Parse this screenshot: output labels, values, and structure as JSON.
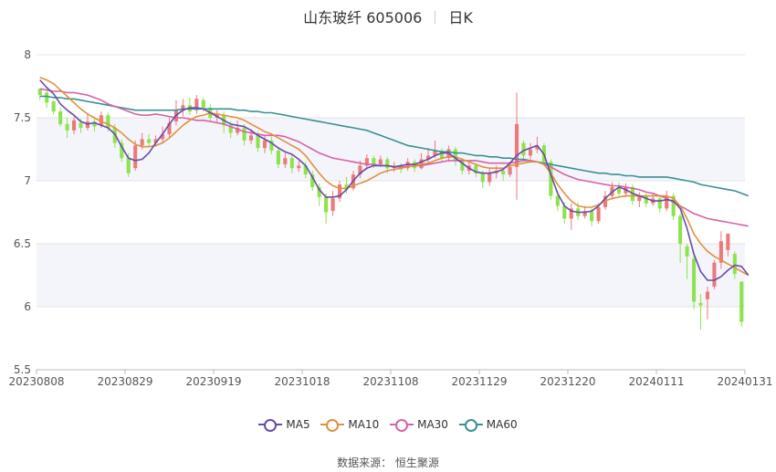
{
  "title": {
    "stock": "山东玻纤 605006",
    "period": "日K"
  },
  "source": "数据来源： 恒生聚源",
  "chart_data": {
    "type": "candlestick",
    "ylim": [
      5.5,
      8
    ],
    "yticks": [
      "8",
      "7.5",
      "7",
      "6.5",
      "6",
      "5.5"
    ],
    "xticks": [
      "20230808",
      "20230829",
      "20230919",
      "20231018",
      "20231108",
      "20231129",
      "20231220",
      "20240111",
      "20240131"
    ],
    "colors": {
      "up": "#ec7a7a",
      "down": "#8ce34d",
      "MA5": "#6a4aa8",
      "MA10": "#e0913f",
      "MA30": "#d464a8",
      "MA60": "#3a9091"
    },
    "legend": [
      "MA5",
      "MA10",
      "MA30",
      "MA60"
    ],
    "candles": [
      [
        7.73,
        7.68,
        7.71,
        7.64
      ],
      [
        7.7,
        7.62,
        7.72,
        7.58
      ],
      [
        7.63,
        7.55,
        7.64,
        7.53
      ],
      [
        7.55,
        7.45,
        7.58,
        7.43
      ],
      [
        7.45,
        7.4,
        7.5,
        7.34
      ],
      [
        7.4,
        7.48,
        7.51,
        7.37
      ],
      [
        7.46,
        7.42,
        7.49,
        7.38
      ],
      [
        7.42,
        7.47,
        7.53,
        7.4
      ],
      [
        7.47,
        7.43,
        7.5,
        7.39
      ],
      [
        7.44,
        7.52,
        7.55,
        7.42
      ],
      [
        7.52,
        7.42,
        7.54,
        7.39
      ],
      [
        7.42,
        7.3,
        7.45,
        7.26
      ],
      [
        7.3,
        7.18,
        7.33,
        7.15
      ],
      [
        7.18,
        7.06,
        7.22,
        7.03
      ],
      [
        7.1,
        7.28,
        7.32,
        7.08
      ],
      [
        7.28,
        7.33,
        7.38,
        7.25
      ],
      [
        7.33,
        7.3,
        7.37,
        7.27
      ],
      [
        7.3,
        7.33,
        7.36,
        7.27
      ],
      [
        7.33,
        7.37,
        7.43,
        7.3
      ],
      [
        7.37,
        7.46,
        7.5,
        7.34
      ],
      [
        7.47,
        7.56,
        7.64,
        7.44
      ],
      [
        7.56,
        7.6,
        7.65,
        7.51
      ],
      [
        7.6,
        7.55,
        7.66,
        7.52
      ],
      [
        7.56,
        7.65,
        7.68,
        7.53
      ],
      [
        7.64,
        7.58,
        7.66,
        7.55
      ],
      [
        7.58,
        7.5,
        7.61,
        7.47
      ],
      [
        7.5,
        7.53,
        7.56,
        7.46
      ],
      [
        7.52,
        7.44,
        7.55,
        7.38
      ],
      [
        7.44,
        7.38,
        7.47,
        7.34
      ],
      [
        7.38,
        7.42,
        7.48,
        7.36
      ],
      [
        7.42,
        7.32,
        7.45,
        7.28
      ],
      [
        7.32,
        7.36,
        7.41,
        7.29
      ],
      [
        7.36,
        7.26,
        7.39,
        7.23
      ],
      [
        7.26,
        7.32,
        7.36,
        7.22
      ],
      [
        7.32,
        7.24,
        7.35,
        7.21
      ],
      [
        7.24,
        7.13,
        7.26,
        7.1
      ],
      [
        7.13,
        7.18,
        7.22,
        7.1
      ],
      [
        7.18,
        7.1,
        7.21,
        7.06
      ],
      [
        7.1,
        7.12,
        7.16,
        7.07
      ],
      [
        7.12,
        7.05,
        7.15,
        7.02
      ],
      [
        7.05,
        6.95,
        7.08,
        6.92
      ],
      [
        6.95,
        6.87,
        6.98,
        6.8
      ],
      [
        6.87,
        6.75,
        6.9,
        6.66
      ],
      [
        6.76,
        6.86,
        6.92,
        6.72
      ],
      [
        6.86,
        6.97,
        7.0,
        6.83
      ],
      [
        6.97,
        6.93,
        7.03,
        6.9
      ],
      [
        6.94,
        7.05,
        7.08,
        6.92
      ],
      [
        7.05,
        7.12,
        7.16,
        7.02
      ],
      [
        7.12,
        7.18,
        7.21,
        7.09
      ],
      [
        7.18,
        7.13,
        7.2,
        7.1
      ],
      [
        7.13,
        7.17,
        7.2,
        7.11
      ],
      [
        7.17,
        7.1,
        7.19,
        7.06
      ],
      [
        7.1,
        7.12,
        7.15,
        7.07
      ],
      [
        7.12,
        7.09,
        7.14,
        7.06
      ],
      [
        7.1,
        7.15,
        7.18,
        7.08
      ],
      [
        7.15,
        7.1,
        7.17,
        7.07
      ],
      [
        7.1,
        7.17,
        7.22,
        7.09
      ],
      [
        7.17,
        7.2,
        7.26,
        7.14
      ],
      [
        7.2,
        7.24,
        7.32,
        7.18
      ],
      [
        7.24,
        7.18,
        7.26,
        7.15
      ],
      [
        7.18,
        7.25,
        7.28,
        7.15
      ],
      [
        7.25,
        7.16,
        7.27,
        7.12
      ],
      [
        7.16,
        7.08,
        7.18,
        7.05
      ],
      [
        7.08,
        7.12,
        7.16,
        7.05
      ],
      [
        7.12,
        7.06,
        7.14,
        7.03
      ],
      [
        7.06,
        6.99,
        7.08,
        6.94
      ],
      [
        6.99,
        7.06,
        7.1,
        6.96
      ],
      [
        7.06,
        7.08,
        7.12,
        7.02
      ],
      [
        7.08,
        7.05,
        7.1,
        7.0
      ],
      [
        7.05,
        7.11,
        7.15,
        7.03
      ],
      [
        7.11,
        7.45,
        7.7,
        6.85
      ],
      [
        7.3,
        7.2,
        7.32,
        7.15
      ],
      [
        7.2,
        7.25,
        7.3,
        7.17
      ],
      [
        7.25,
        7.28,
        7.35,
        7.22
      ],
      [
        7.28,
        7.15,
        7.3,
        7.12
      ],
      [
        7.15,
        6.88,
        7.17,
        6.85
      ],
      [
        6.88,
        6.8,
        6.92,
        6.76
      ],
      [
        6.8,
        6.7,
        6.83,
        6.66
      ],
      [
        6.7,
        6.78,
        6.82,
        6.61
      ],
      [
        6.78,
        6.72,
        6.83,
        6.69
      ],
      [
        6.72,
        6.76,
        6.8,
        6.7
      ],
      [
        6.76,
        6.68,
        6.78,
        6.64
      ],
      [
        6.68,
        6.79,
        6.82,
        6.66
      ],
      [
        6.79,
        6.88,
        6.92,
        6.77
      ],
      [
        6.88,
        6.95,
        6.99,
        6.85
      ],
      [
        6.95,
        6.9,
        6.99,
        6.87
      ],
      [
        6.9,
        6.95,
        6.98,
        6.87
      ],
      [
        6.95,
        6.84,
        6.97,
        6.81
      ],
      [
        6.84,
        6.88,
        6.91,
        6.79
      ],
      [
        6.88,
        6.82,
        6.9,
        6.79
      ],
      [
        6.82,
        6.86,
        6.9,
        6.8
      ],
      [
        6.86,
        6.78,
        6.89,
        6.75
      ],
      [
        6.78,
        6.88,
        6.92,
        6.76
      ],
      [
        6.88,
        6.72,
        6.9,
        6.69
      ],
      [
        6.72,
        6.5,
        6.74,
        6.35
      ],
      [
        6.48,
        6.4,
        6.5,
        6.22
      ],
      [
        6.38,
        6.04,
        6.42,
        5.98
      ],
      [
        6.03,
        6.01,
        6.1,
        5.82
      ],
      [
        6.06,
        6.12,
        6.16,
        5.9
      ],
      [
        6.16,
        6.35,
        6.37,
        6.14
      ],
      [
        6.35,
        6.52,
        6.6,
        6.3
      ],
      [
        6.45,
        6.58,
        6.58,
        6.4
      ],
      [
        6.42,
        6.26,
        6.44,
        6.22
      ],
      [
        6.2,
        5.88,
        6.2,
        5.84
      ]
    ],
    "ma5": [
      7.8,
      7.74,
      7.69,
      7.61,
      7.56,
      7.52,
      7.47,
      7.45,
      7.46,
      7.44,
      7.42,
      7.37,
      7.27,
      7.18,
      7.16,
      7.17,
      7.22,
      7.3,
      7.37,
      7.45,
      7.52,
      7.56,
      7.58,
      7.58,
      7.57,
      7.54,
      7.51,
      7.48,
      7.45,
      7.44,
      7.43,
      7.4,
      7.36,
      7.33,
      7.3,
      7.26,
      7.23,
      7.21,
      7.17,
      7.12,
      7.03,
      6.93,
      6.87,
      6.87,
      6.88,
      6.93,
      7.0,
      7.06,
      7.1,
      7.12,
      7.12,
      7.12,
      7.11,
      7.12,
      7.13,
      7.13,
      7.15,
      7.17,
      7.2,
      7.22,
      7.22,
      7.18,
      7.14,
      7.1,
      7.07,
      7.06,
      7.06,
      7.07,
      7.09,
      7.14,
      7.2,
      7.24,
      7.26,
      7.28,
      7.21,
      7.05,
      6.9,
      6.8,
      6.76,
      6.75,
      6.75,
      6.76,
      6.8,
      6.86,
      6.91,
      6.95,
      6.93,
      6.9,
      6.88,
      6.86,
      6.84,
      6.84,
      6.85,
      6.84,
      6.78,
      6.62,
      6.42,
      6.28,
      6.21,
      6.21,
      6.24,
      6.29,
      6.33,
      6.32,
      6.25
    ],
    "ma10": [
      7.82,
      7.8,
      7.77,
      7.72,
      7.67,
      7.62,
      7.57,
      7.53,
      7.5,
      7.47,
      7.45,
      7.42,
      7.38,
      7.33,
      7.29,
      7.27,
      7.27,
      7.28,
      7.3,
      7.34,
      7.39,
      7.44,
      7.48,
      7.51,
      7.52,
      7.54,
      7.53,
      7.52,
      7.51,
      7.5,
      7.48,
      7.45,
      7.42,
      7.39,
      7.37,
      7.34,
      7.31,
      7.28,
      7.25,
      7.2,
      7.13,
      7.06,
      7.0,
      6.96,
      6.94,
      6.94,
      6.96,
      6.98,
      7.0,
      7.03,
      7.06,
      7.08,
      7.09,
      7.1,
      7.11,
      7.12,
      7.13,
      7.14,
      7.16,
      7.18,
      7.19,
      7.19,
      7.17,
      7.15,
      7.13,
      7.11,
      7.1,
      7.1,
      7.1,
      7.12,
      7.13,
      7.14,
      7.15,
      7.15,
      7.13,
      7.06,
      6.97,
      6.9,
      6.84,
      6.8,
      6.79,
      6.79,
      6.81,
      6.84,
      6.86,
      6.87,
      6.88,
      6.88,
      6.88,
      6.88,
      6.88,
      6.88,
      6.88,
      6.86,
      6.8,
      6.7,
      6.58,
      6.5,
      6.44,
      6.4,
      6.37,
      6.34,
      6.31,
      6.28,
      6.25
    ],
    "ma30": [
      7.73,
      7.72,
      7.71,
      7.71,
      7.7,
      7.7,
      7.69,
      7.68,
      7.66,
      7.64,
      7.61,
      7.59,
      7.57,
      7.55,
      7.53,
      7.52,
      7.52,
      7.53,
      7.52,
      7.51,
      7.5,
      7.5,
      7.49,
      7.48,
      7.48,
      7.47,
      7.46,
      7.45,
      7.43,
      7.41,
      7.39,
      7.38,
      7.37,
      7.36,
      7.36,
      7.36,
      7.35,
      7.33,
      7.31,
      7.28,
      7.25,
      7.22,
      7.2,
      7.18,
      7.17,
      7.16,
      7.15,
      7.14,
      7.13,
      7.13,
      7.12,
      7.12,
      7.11,
      7.11,
      7.11,
      7.12,
      7.12,
      7.13,
      7.14,
      7.15,
      7.16,
      7.16,
      7.16,
      7.16,
      7.16,
      7.15,
      7.14,
      7.14,
      7.14,
      7.14,
      7.15,
      7.16,
      7.16,
      7.15,
      7.13,
      7.11,
      7.08,
      7.05,
      7.03,
      7.01,
      7.0,
      6.99,
      6.98,
      6.97,
      6.96,
      6.96,
      6.95,
      6.94,
      6.93,
      6.91,
      6.9,
      6.88,
      6.86,
      6.83,
      6.8,
      6.77,
      6.74,
      6.72,
      6.7,
      6.69,
      6.68,
      6.67,
      6.66,
      6.65,
      6.64
    ],
    "ma60": [
      7.67,
      7.67,
      7.66,
      7.66,
      7.65,
      7.65,
      7.64,
      7.63,
      7.62,
      7.61,
      7.6,
      7.59,
      7.58,
      7.57,
      7.56,
      7.56,
      7.56,
      7.56,
      7.56,
      7.56,
      7.56,
      7.57,
      7.57,
      7.57,
      7.57,
      7.57,
      7.57,
      7.57,
      7.57,
      7.56,
      7.56,
      7.55,
      7.55,
      7.54,
      7.54,
      7.53,
      7.52,
      7.51,
      7.5,
      7.49,
      7.48,
      7.47,
      7.46,
      7.45,
      7.44,
      7.43,
      7.42,
      7.41,
      7.4,
      7.38,
      7.36,
      7.34,
      7.32,
      7.3,
      7.28,
      7.27,
      7.26,
      7.25,
      7.24,
      7.23,
      7.23,
      7.22,
      7.22,
      7.21,
      7.2,
      7.2,
      7.19,
      7.19,
      7.18,
      7.18,
      7.17,
      7.17,
      7.16,
      7.15,
      7.14,
      7.13,
      7.12,
      7.11,
      7.1,
      7.09,
      7.08,
      7.07,
      7.06,
      7.06,
      7.05,
      7.05,
      7.04,
      7.04,
      7.03,
      7.03,
      7.03,
      7.03,
      7.03,
      7.02,
      7.01,
      7.0,
      6.99,
      6.97,
      6.96,
      6.95,
      6.94,
      6.93,
      6.92,
      6.9,
      6.88
    ]
  }
}
